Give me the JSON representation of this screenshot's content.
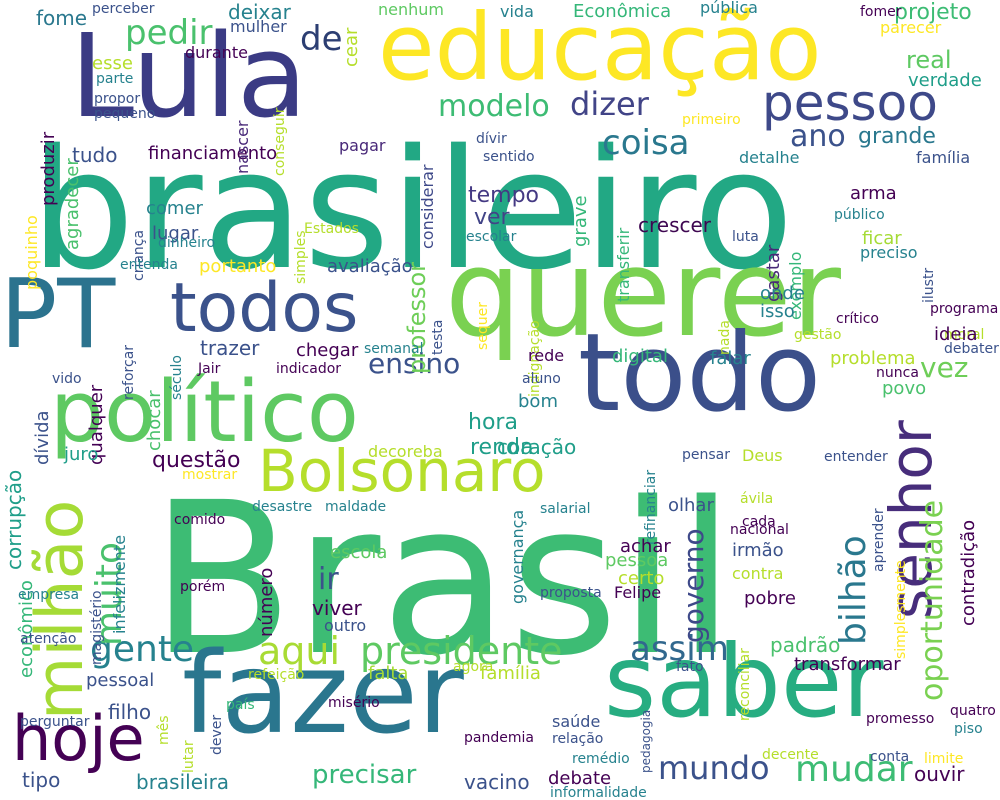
{
  "palette": {
    "dark_purple": "#440154",
    "indigo": "#3b528b",
    "blue": "#31688e",
    "teal": "#26828e",
    "sea_green": "#1f9e89",
    "green": "#35b779",
    "mid_green": "#6ece58",
    "lime": "#b5de2b",
    "yellow": "#fde725"
  },
  "words": [
    {
      "text": "Brasil",
      "color": "#3dbc74"
    },
    {
      "text": "brasileiro",
      "color": "#22a884"
    },
    {
      "text": "querer",
      "color": "#7ad151"
    },
    {
      "text": "Lula",
      "color": "#3b3b84"
    },
    {
      "text": "educação",
      "color": "#fde725"
    },
    {
      "text": "todo",
      "color": "#3b4f8a"
    },
    {
      "text": "fazer",
      "color": "#2a768e"
    },
    {
      "text": "saber",
      "color": "#27ad81"
    },
    {
      "text": "político",
      "color": "#5ec962"
    },
    {
      "text": "PT",
      "color": "#2c738e"
    },
    {
      "text": "todos",
      "color": "#3b528b"
    },
    {
      "text": "Bolsonaro",
      "color": "#b5de2b"
    },
    {
      "text": "senhor",
      "color": "#472d7b"
    },
    {
      "text": "hoje",
      "color": "#440154"
    },
    {
      "text": "milhão",
      "color": "#a5db36"
    },
    {
      "text": "pessoo",
      "color": "#3e4989"
    },
    {
      "text": "presidente",
      "color": "#5ec962"
    },
    {
      "text": "aqui",
      "color": "#a8db34"
    },
    {
      "text": "gente",
      "color": "#26828e"
    },
    {
      "text": "assim",
      "color": "#31688e"
    },
    {
      "text": "mudar",
      "color": "#3dbc74"
    },
    {
      "text": "mundo",
      "color": "#3b528b"
    },
    {
      "text": "muito",
      "color": "#4ac16d"
    },
    {
      "text": "bilhão",
      "color": "#2a788e"
    },
    {
      "text": "oportunidade",
      "color": "#7ad151"
    },
    {
      "text": "governo",
      "color": "#3e4989"
    },
    {
      "text": "coisa",
      "color": "#2a788e"
    },
    {
      "text": "modelo",
      "color": "#3dbc74"
    },
    {
      "text": "dizer",
      "color": "#414487"
    },
    {
      "text": "pedir",
      "color": "#4ac16d"
    },
    {
      "text": "de",
      "color": "#2c3e72"
    },
    {
      "text": "ano",
      "color": "#3b528b"
    },
    {
      "text": "grande",
      "color": "#2a788e"
    },
    {
      "text": "ensino",
      "color": "#3b528b"
    },
    {
      "text": "vez",
      "color": "#6ece58"
    },
    {
      "text": "precisar",
      "color": "#35b779"
    },
    {
      "text": "hora",
      "color": "#1f9e89"
    },
    {
      "text": "renda",
      "color": "#1f9e89"
    },
    {
      "text": "ir",
      "color": "#3b528b"
    },
    {
      "text": "questão",
      "color": "#440154"
    },
    {
      "text": "coração",
      "color": "#1f9e89"
    },
    {
      "text": "tempo",
      "color": "#443983"
    },
    {
      "text": "ver",
      "color": "#414487"
    },
    {
      "text": "crescer",
      "color": "#3e0751"
    },
    {
      "text": "professor",
      "color": "#6ece58"
    },
    {
      "text": "real",
      "color": "#5ec962"
    },
    {
      "text": "projeto",
      "color": "#3dbc74"
    },
    {
      "text": "verdade",
      "color": "#1f9e89"
    },
    {
      "text": "financiamento",
      "color": "#440154"
    },
    {
      "text": "tudo",
      "color": "#3b528b"
    },
    {
      "text": "fome",
      "color": "#2a788e"
    },
    {
      "text": "deixar",
      "color": "#26828e"
    },
    {
      "text": "mulher",
      "color": "#3b528b"
    },
    {
      "text": "nenhum",
      "color": "#5ec962"
    },
    {
      "text": "vida",
      "color": "#26828e"
    },
    {
      "text": "Econômica",
      "color": "#35b779"
    },
    {
      "text": "pública",
      "color": "#26828e"
    },
    {
      "text": "fomer",
      "color": "#440154"
    },
    {
      "text": "parecer",
      "color": "#fde725"
    },
    {
      "text": "esse",
      "color": "#b5de2b"
    },
    {
      "text": "parte",
      "color": "#26828e"
    },
    {
      "text": "propor",
      "color": "#3b528b"
    },
    {
      "text": "pequeno",
      "color": "#3b528b"
    },
    {
      "text": "produzir",
      "color": "#440154"
    },
    {
      "text": "agradecer",
      "color": "#4ac16d"
    },
    {
      "text": "durante",
      "color": "#440154"
    },
    {
      "text": "nascer",
      "color": "#482878"
    },
    {
      "text": "conseguir",
      "color": "#b5de2b"
    },
    {
      "text": "cear",
      "color": "#b5de2b"
    },
    {
      "text": "perceber",
      "color": "#3b528b"
    },
    {
      "text": "poquinho",
      "color": "#fde725"
    },
    {
      "text": "pagar",
      "color": "#482878"
    },
    {
      "text": "considerar",
      "color": "#3e4989"
    },
    {
      "text": "dívir",
      "color": "#3b528b"
    },
    {
      "text": "sentido",
      "color": "#3b528b"
    },
    {
      "text": "primeiro",
      "color": "#fde725"
    },
    {
      "text": "detalhe",
      "color": "#26828e"
    },
    {
      "text": "família",
      "color": "#3b528b"
    },
    {
      "text": "grave",
      "color": "#35b779"
    },
    {
      "text": "transferir",
      "color": "#35b779"
    },
    {
      "text": "gastar",
      "color": "#482878"
    },
    {
      "text": "exemplo",
      "color": "#35b779"
    },
    {
      "text": "luta",
      "color": "#3b528b"
    },
    {
      "text": "arma",
      "color": "#440154"
    },
    {
      "text": "público",
      "color": "#26828e"
    },
    {
      "text": "ilustr",
      "color": "#3b528b"
    },
    {
      "text": "ficar",
      "color": "#a5db36"
    },
    {
      "text": "preciso",
      "color": "#26828e"
    },
    {
      "text": "comer",
      "color": "#26828e"
    },
    {
      "text": "lugar",
      "color": "#3b528b"
    },
    {
      "text": "dinheiro",
      "color": "#26828e"
    },
    {
      "text": "criança",
      "color": "#3b528b"
    },
    {
      "text": "simples",
      "color": "#b5de2b"
    },
    {
      "text": "Estados",
      "color": "#b5de2b"
    },
    {
      "text": "escolar",
      "color": "#26828e"
    },
    {
      "text": "entenda",
      "color": "#26828e"
    },
    {
      "text": "portanto",
      "color": "#fde725"
    },
    {
      "text": "avaliação",
      "color": "#3b528b"
    },
    {
      "text": "testa",
      "color": "#3b528b"
    },
    {
      "text": "sequer",
      "color": "#fde725"
    },
    {
      "text": "indignação",
      "color": "#b5de2b"
    },
    {
      "text": "nada",
      "color": "#b5de2b"
    },
    {
      "text": "onde",
      "color": "#26828e"
    },
    {
      "text": "isso",
      "color": "#26828e"
    },
    {
      "text": "gestão",
      "color": "#b5de2b"
    },
    {
      "text": "crítico",
      "color": "#440154"
    },
    {
      "text": "moral",
      "color": "#b5de2b"
    },
    {
      "text": "programa",
      "color": "#440154"
    },
    {
      "text": "ideia",
      "color": "#440154"
    },
    {
      "text": "debater",
      "color": "#3b528b"
    },
    {
      "text": "qualquer",
      "color": "#440154"
    },
    {
      "text": "reforçar",
      "color": "#3b528b"
    },
    {
      "text": "século",
      "color": "#26828e"
    },
    {
      "text": "trazer",
      "color": "#3b528b"
    },
    {
      "text": "chegar",
      "color": "#440154"
    },
    {
      "text": "semanal",
      "color": "#26828e"
    },
    {
      "text": "dívida",
      "color": "#3b528b"
    },
    {
      "text": "chocar",
      "color": "#4ac16d"
    },
    {
      "text": "Jair",
      "color": "#440154"
    },
    {
      "text": "indicador",
      "color": "#440154"
    },
    {
      "text": "rede",
      "color": "#440154"
    },
    {
      "text": "digital",
      "color": "#35b779"
    },
    {
      "text": "falar",
      "color": "#26828e"
    },
    {
      "text": "problema",
      "color": "#b5de2b"
    },
    {
      "text": "nunca",
      "color": "#440154"
    },
    {
      "text": "povo",
      "color": "#4ac16d"
    },
    {
      "text": "vido",
      "color": "#3b528b"
    },
    {
      "text": "aluno",
      "color": "#3b528b"
    },
    {
      "text": "bom",
      "color": "#26828e"
    },
    {
      "text": "juro",
      "color": "#1f9e89"
    },
    {
      "text": "corrupção",
      "color": "#1f9e89"
    },
    {
      "text": "decoreba",
      "color": "#b5de2b"
    },
    {
      "text": "refinanciar",
      "color": "#26828e"
    },
    {
      "text": "pensar",
      "color": "#3b528b"
    },
    {
      "text": "Deus",
      "color": "#b5de2b"
    },
    {
      "text": "entender",
      "color": "#3b528b"
    },
    {
      "text": "aprender",
      "color": "#3b528b"
    },
    {
      "text": "contradição",
      "color": "#440154"
    },
    {
      "text": "econômico",
      "color": "#35b779"
    },
    {
      "text": "mostrar",
      "color": "#fde725"
    },
    {
      "text": "comido",
      "color": "#440154"
    },
    {
      "text": "desastre",
      "color": "#26828e"
    },
    {
      "text": "maldade",
      "color": "#26828e"
    },
    {
      "text": "salarial",
      "color": "#26828e"
    },
    {
      "text": "olhar",
      "color": "#3b528b"
    },
    {
      "text": "ávila",
      "color": "#b5de2b"
    },
    {
      "text": "cada",
      "color": "#440154"
    },
    {
      "text": "nacional",
      "color": "#440154"
    },
    {
      "text": "achar",
      "color": "#440154"
    },
    {
      "text": "pessoa",
      "color": "#5ec962"
    },
    {
      "text": "irmão",
      "color": "#3b528b"
    },
    {
      "text": "escola",
      "color": "#5ec962"
    },
    {
      "text": "certo",
      "color": "#b5de2b"
    },
    {
      "text": "contra",
      "color": "#b5de2b"
    },
    {
      "text": "Felipe",
      "color": "#440154"
    },
    {
      "text": "pobre",
      "color": "#440154"
    },
    {
      "text": "simplesmente",
      "color": "#fde725"
    },
    {
      "text": "governança",
      "color": "#26828e"
    },
    {
      "text": "proposta",
      "color": "#3b528b"
    },
    {
      "text": "infelizmente",
      "color": "#26828e"
    },
    {
      "text": "magistério",
      "color": "#3b528b"
    },
    {
      "text": "empresa",
      "color": "#26828e"
    },
    {
      "text": "porém",
      "color": "#440154"
    },
    {
      "text": "número",
      "color": "#440154"
    },
    {
      "text": "viver",
      "color": "#440154"
    },
    {
      "text": "outro",
      "color": "#3b528b"
    },
    {
      "text": "atenção",
      "color": "#3b528b"
    },
    {
      "text": "padrão",
      "color": "#4ac16d"
    },
    {
      "text": "transformar",
      "color": "#440154"
    },
    {
      "text": "agora",
      "color": "#b5de2b"
    },
    {
      "text": "falta",
      "color": "#a5db36"
    },
    {
      "text": "família",
      "color": "#b5de2b"
    },
    {
      "text": "pessoal",
      "color": "#3b528b"
    },
    {
      "text": "refeição",
      "color": "#b5de2b"
    },
    {
      "text": "fato",
      "color": "#3b528b"
    },
    {
      "text": "reconciliar",
      "color": "#b5de2b"
    },
    {
      "text": "filho",
      "color": "#3b528b"
    },
    {
      "text": "país",
      "color": "#35b779"
    },
    {
      "text": "misério",
      "color": "#440154"
    },
    {
      "text": "promesso",
      "color": "#440154"
    },
    {
      "text": "quatro",
      "color": "#440154"
    },
    {
      "text": "piso",
      "color": "#26828e"
    },
    {
      "text": "perguntar",
      "color": "#3b528b"
    },
    {
      "text": "mês",
      "color": "#b5de2b"
    },
    {
      "text": "dever",
      "color": "#3b528b"
    },
    {
      "text": "pandemia",
      "color": "#440154"
    },
    {
      "text": "saúde",
      "color": "#3b528b"
    },
    {
      "text": "relação",
      "color": "#3b528b"
    },
    {
      "text": "pedagogia",
      "color": "#3b528b"
    },
    {
      "text": "remédio",
      "color": "#26828e"
    },
    {
      "text": "decente",
      "color": "#b5de2b"
    },
    {
      "text": "conta",
      "color": "#3b528b"
    },
    {
      "text": "limite",
      "color": "#fde725"
    },
    {
      "text": "lutar",
      "color": "#b5de2b"
    },
    {
      "text": "tipo",
      "color": "#3b528b"
    },
    {
      "text": "brasileira",
      "color": "#26828e"
    },
    {
      "text": "vacino",
      "color": "#3b528b"
    },
    {
      "text": "debate",
      "color": "#440154"
    },
    {
      "text": "informalidade",
      "color": "#26828e"
    },
    {
      "text": "ouvir",
      "color": "#440154"
    }
  ]
}
